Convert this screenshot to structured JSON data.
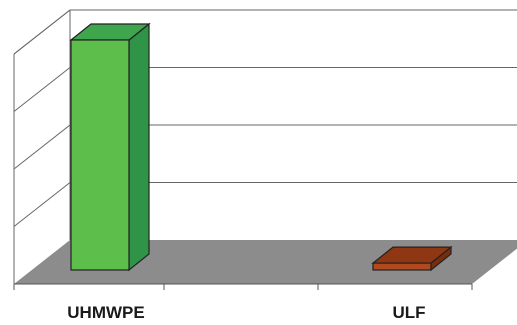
{
  "chart_data": {
    "type": "bar",
    "style": "3d-column",
    "categories": [
      "UHMWPE",
      "ULF"
    ],
    "values": [
      100,
      3
    ],
    "ylim": [
      0,
      100
    ],
    "grid": true,
    "legend": "none",
    "colors": {
      "bar_front": [
        "#5dbe4c",
        "#b04a1e"
      ],
      "bar_side": [
        "#2f9447",
        "#7a2c0e"
      ],
      "bar_top": [
        "#3fa64e",
        "#8f3612"
      ],
      "bar_outline": "#222222",
      "floor": "#8c8c8c",
      "gridline": "#666666"
    }
  }
}
